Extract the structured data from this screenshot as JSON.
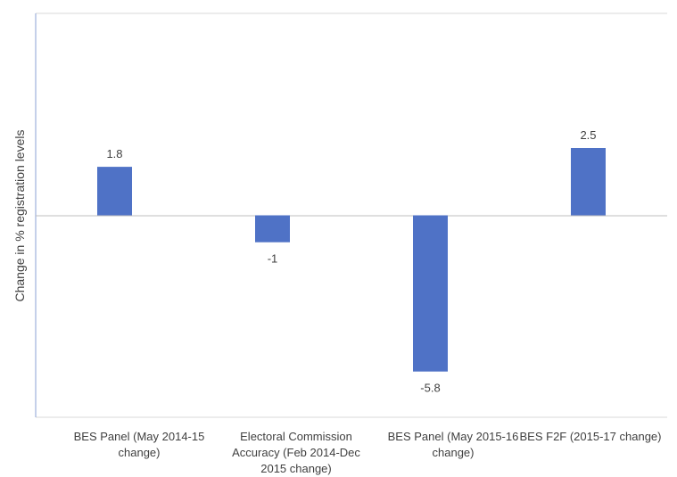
{
  "chart_data": {
    "type": "bar",
    "categories": [
      "BES Panel (May 2014-15\nchange)",
      "Electoral Commission\nAccuracy (Feb 2014-Dec\n2015 change)",
      "BES Panel (May 2015-16\nchange)",
      "BES F2F (2015-17 change)"
    ],
    "values": [
      1.8,
      -1,
      -5.8,
      2.5
    ],
    "data_labels": [
      "1.8",
      "-1",
      "-5.8",
      "2.5"
    ],
    "title": "",
    "xlabel": "",
    "ylabel": "Change in % registration levels",
    "ylim": [
      -7.5,
      7.5
    ],
    "grid": "top-bottom lines only",
    "legend": "none",
    "colors": {
      "bar": "#4f72c6",
      "axis": "#8ba0d4",
      "gridline": "#d9d9d9",
      "text": "#404040"
    }
  }
}
